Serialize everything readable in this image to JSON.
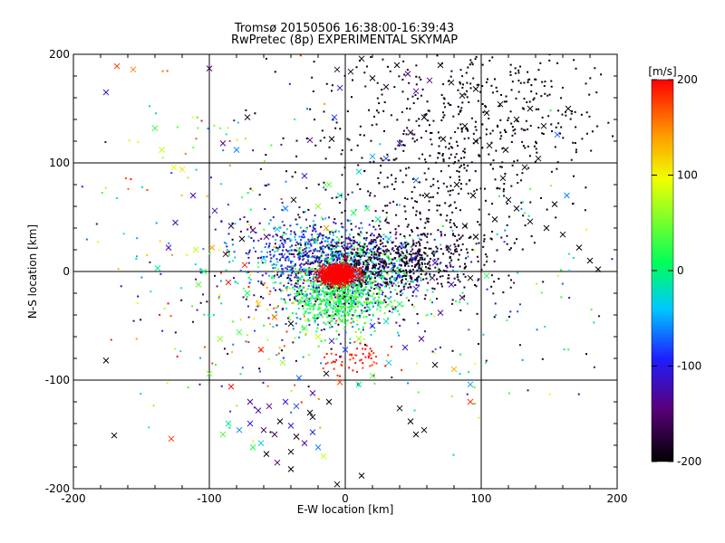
{
  "chart_data": {
    "type": "scatter",
    "title": "Tromsø 20150506 16:38:00-16:39:43",
    "subtitle": "RwPretec (8p) EXPERIMENTAL SKYMAP",
    "xlabel": "E-W location [km]",
    "ylabel": "N-S location [km]",
    "xlim": [
      -200,
      200
    ],
    "ylim": [
      -200,
      200
    ],
    "x_ticks": [
      "-200",
      "-100",
      "0",
      "100",
      "200"
    ],
    "y_ticks": [
      "-200",
      "-100",
      "0",
      "100",
      "200"
    ],
    "grid": true,
    "colorbar": {
      "label": "[m/s]",
      "range": [
        -200,
        200
      ],
      "ticks": [
        "200",
        "100",
        "0",
        "-100",
        "-200"
      ],
      "colormap": "black-purple-blue-cyan-green-yellow-red"
    },
    "marker_types": [
      "x",
      "dot"
    ],
    "points": [
      [
        -168,
        189,
        180,
        "x"
      ],
      [
        -176,
        165,
        -110,
        "x"
      ],
      [
        -140,
        132,
        30,
        "x"
      ],
      [
        -135,
        112,
        80,
        "x"
      ],
      [
        -156,
        186,
        150,
        "x"
      ],
      [
        -120,
        94,
        110,
        "x"
      ],
      [
        -126,
        96,
        95,
        "x"
      ],
      [
        -100,
        187,
        -150,
        "x"
      ],
      [
        -90,
        118,
        -140,
        "x"
      ],
      [
        -72,
        142,
        -180,
        "x"
      ],
      [
        -80,
        112,
        -60,
        "x"
      ],
      [
        -112,
        70,
        -120,
        "x"
      ],
      [
        -125,
        45,
        -120,
        "x"
      ],
      [
        -130,
        22,
        -130,
        "x"
      ],
      [
        -138,
        3,
        -10,
        "x"
      ],
      [
        -110,
        20,
        80,
        "x"
      ],
      [
        -98,
        22,
        140,
        "x"
      ],
      [
        -96,
        56,
        -120,
        "x"
      ],
      [
        -84,
        42,
        -170,
        "x"
      ],
      [
        -76,
        30,
        -200,
        "x"
      ],
      [
        -68,
        38,
        -160,
        "x"
      ],
      [
        -58,
        32,
        -140,
        "x"
      ],
      [
        -50,
        39,
        -30,
        "x"
      ],
      [
        -44,
        58,
        -60,
        "x"
      ],
      [
        -38,
        66,
        -200,
        "x"
      ],
      [
        -30,
        88,
        -100,
        "x"
      ],
      [
        -26,
        121,
        -140,
        "x"
      ],
      [
        -10,
        122,
        -200,
        "x"
      ],
      [
        -8,
        142,
        -80,
        "x"
      ],
      [
        -4,
        169,
        -120,
        "x"
      ],
      [
        -6,
        186,
        -170,
        "x"
      ],
      [
        4,
        184,
        -190,
        "x"
      ],
      [
        12,
        196,
        -200,
        "x"
      ],
      [
        20,
        178,
        -200,
        "x"
      ],
      [
        30,
        170,
        -180,
        "x"
      ],
      [
        38,
        190,
        -200,
        "x"
      ],
      [
        46,
        182,
        -150,
        "x"
      ],
      [
        52,
        166,
        -130,
        "x"
      ],
      [
        62,
        176,
        -140,
        "x"
      ],
      [
        70,
        190,
        -200,
        "x"
      ],
      [
        78,
        174,
        -200,
        "x"
      ],
      [
        86,
        162,
        -190,
        "x"
      ],
      [
        96,
        168,
        -200,
        "x"
      ],
      [
        104,
        146,
        -200,
        "x"
      ],
      [
        114,
        154,
        -200,
        "x"
      ],
      [
        126,
        140,
        -200,
        "x"
      ],
      [
        136,
        150,
        -200,
        "x"
      ],
      [
        146,
        134,
        -200,
        "x"
      ],
      [
        156,
        126,
        -70,
        "x"
      ],
      [
        164,
        150,
        -200,
        "x"
      ],
      [
        142,
        104,
        -200,
        "x"
      ],
      [
        132,
        96,
        -200,
        "x"
      ],
      [
        118,
        112,
        -200,
        "x"
      ],
      [
        106,
        116,
        -200,
        "x"
      ],
      [
        96,
        120,
        -200,
        "x"
      ],
      [
        88,
        134,
        -200,
        "x"
      ],
      [
        72,
        122,
        -200,
        "x"
      ],
      [
        58,
        142,
        -200,
        "x"
      ],
      [
        48,
        128,
        -170,
        "x"
      ],
      [
        40,
        118,
        -120,
        "x"
      ],
      [
        30,
        104,
        -80,
        "x"
      ],
      [
        20,
        106,
        -50,
        "x"
      ],
      [
        10,
        92,
        -30,
        "x"
      ],
      [
        52,
        84,
        -70,
        "x"
      ],
      [
        60,
        70,
        -200,
        "x"
      ],
      [
        82,
        80,
        -200,
        "x"
      ],
      [
        94,
        70,
        -200,
        "x"
      ],
      [
        116,
        86,
        -200,
        "x"
      ],
      [
        126,
        58,
        -200,
        "x"
      ],
      [
        136,
        46,
        -200,
        "x"
      ],
      [
        148,
        40,
        -200,
        "x"
      ],
      [
        160,
        34,
        -200,
        "x"
      ],
      [
        172,
        22,
        -200,
        "x"
      ],
      [
        180,
        10,
        -200,
        "x"
      ],
      [
        186,
        2,
        -200,
        "x"
      ],
      [
        163,
        70,
        -60,
        "x"
      ],
      [
        154,
        62,
        -200,
        "x"
      ],
      [
        120,
        66,
        -200,
        "x"
      ],
      [
        110,
        48,
        -200,
        "x"
      ],
      [
        96,
        32,
        -200,
        "x"
      ],
      [
        88,
        42,
        -200,
        "x"
      ],
      [
        76,
        22,
        -160,
        "x"
      ],
      [
        66,
        8,
        -120,
        "x"
      ],
      [
        50,
        12,
        -100,
        "x"
      ],
      [
        42,
        24,
        -70,
        "x"
      ],
      [
        32,
        30,
        -40,
        "x"
      ],
      [
        24,
        48,
        -10,
        "x"
      ],
      [
        16,
        58,
        20,
        "x"
      ],
      [
        6,
        54,
        10,
        "x"
      ],
      [
        -4,
        70,
        -20,
        "x"
      ],
      [
        -12,
        80,
        40,
        "x"
      ],
      [
        -20,
        60,
        60,
        "x"
      ],
      [
        -14,
        40,
        140,
        "x"
      ],
      [
        -22,
        28,
        0,
        "x"
      ],
      [
        -34,
        20,
        50,
        "x"
      ],
      [
        -46,
        14,
        -80,
        "x"
      ],
      [
        -60,
        12,
        -40,
        "x"
      ],
      [
        -74,
        6,
        190,
        "x"
      ],
      [
        -88,
        16,
        -170,
        "x"
      ],
      [
        -104,
        0,
        20,
        "x"
      ],
      [
        -108,
        -12,
        40,
        "x"
      ],
      [
        -86,
        -10,
        190,
        "x"
      ],
      [
        -72,
        -20,
        10,
        "x"
      ],
      [
        -64,
        -30,
        120,
        "x"
      ],
      [
        -52,
        -42,
        160,
        "x"
      ],
      [
        -40,
        -48,
        -190,
        "x"
      ],
      [
        -30,
        -52,
        40,
        "x"
      ],
      [
        -20,
        -60,
        80,
        "x"
      ],
      [
        -10,
        -64,
        -120,
        "x"
      ],
      [
        0,
        -72,
        -80,
        "x"
      ],
      [
        10,
        -62,
        60,
        "x"
      ],
      [
        20,
        -50,
        -90,
        "x"
      ],
      [
        30,
        -46,
        -20,
        "x"
      ],
      [
        40,
        -30,
        10,
        "x"
      ],
      [
        52,
        -16,
        -100,
        "x"
      ],
      [
        64,
        -6,
        -150,
        "x"
      ],
      [
        78,
        -12,
        -120,
        "x"
      ],
      [
        92,
        -6,
        -200,
        "x"
      ],
      [
        104,
        -4,
        20,
        "x"
      ],
      [
        86,
        -24,
        -160,
        "x"
      ],
      [
        70,
        -38,
        -130,
        "x"
      ],
      [
        56,
        -62,
        -140,
        "x"
      ],
      [
        44,
        -70,
        -100,
        "x"
      ],
      [
        32,
        -84,
        -40,
        "x"
      ],
      [
        20,
        -96,
        30,
        "x"
      ],
      [
        10,
        -104,
        -10,
        "x"
      ],
      [
        -4,
        -102,
        170,
        "x"
      ],
      [
        -14,
        -94,
        -200,
        "x"
      ],
      [
        -24,
        -112,
        -130,
        "x"
      ],
      [
        -34,
        -98,
        -70,
        "x"
      ],
      [
        -46,
        -84,
        60,
        "x"
      ],
      [
        -62,
        -72,
        190,
        "x"
      ],
      [
        -78,
        -56,
        30,
        "x"
      ],
      [
        -92,
        -62,
        60,
        "x"
      ],
      [
        -100,
        -94,
        50,
        "x"
      ],
      [
        -84,
        -106,
        200,
        "x"
      ],
      [
        -176,
        -82,
        -200,
        "x"
      ],
      [
        -170,
        -151,
        -200,
        "x"
      ],
      [
        -128,
        -154,
        180,
        "x"
      ],
      [
        -70,
        -120,
        -140,
        "x"
      ],
      [
        -64,
        -128,
        -120,
        "x"
      ],
      [
        -56,
        -124,
        -150,
        "x"
      ],
      [
        -70,
        -140,
        -100,
        "x"
      ],
      [
        -78,
        -146,
        -60,
        "x"
      ],
      [
        -86,
        -140,
        -10,
        "x"
      ],
      [
        -90,
        -150,
        40,
        "x"
      ],
      [
        -60,
        -146,
        -170,
        "x"
      ],
      [
        -52,
        -150,
        -160,
        "x"
      ],
      [
        -48,
        -138,
        -200,
        "x"
      ],
      [
        -40,
        -142,
        -110,
        "x"
      ],
      [
        -36,
        -152,
        -190,
        "x"
      ],
      [
        -30,
        -158,
        -140,
        "x"
      ],
      [
        -24,
        -148,
        -90,
        "x"
      ],
      [
        -20,
        -162,
        -60,
        "x"
      ],
      [
        -16,
        -170,
        80,
        "x"
      ],
      [
        -26,
        -130,
        -200,
        "x"
      ],
      [
        -62,
        -158,
        -30,
        "x"
      ],
      [
        -68,
        -162,
        20,
        "x"
      ],
      [
        -58,
        -168,
        -200,
        "x"
      ],
      [
        -50,
        -176,
        -150,
        "x"
      ],
      [
        -40,
        -182,
        -200,
        "x"
      ],
      [
        -44,
        -120,
        -100,
        "x"
      ],
      [
        -36,
        -124,
        -80,
        "x"
      ],
      [
        -24,
        -134,
        -200,
        "x"
      ],
      [
        40,
        -126,
        -200,
        "x"
      ],
      [
        48,
        -138,
        -200,
        "x"
      ],
      [
        52,
        -150,
        -200,
        "x"
      ],
      [
        58,
        -146,
        -200,
        "x"
      ],
      [
        66,
        -86,
        -200,
        "x"
      ],
      [
        80,
        -90,
        130,
        "x"
      ],
      [
        92,
        -104,
        -50,
        "x"
      ],
      [
        92,
        -120,
        180,
        "x"
      ],
      [
        -6,
        -196,
        -200,
        "x"
      ],
      [
        12,
        -188,
        -200,
        "x"
      ],
      [
        -40,
        -166,
        -200,
        "x"
      ],
      [
        -12,
        -120,
        -200,
        "x"
      ]
    ]
  }
}
